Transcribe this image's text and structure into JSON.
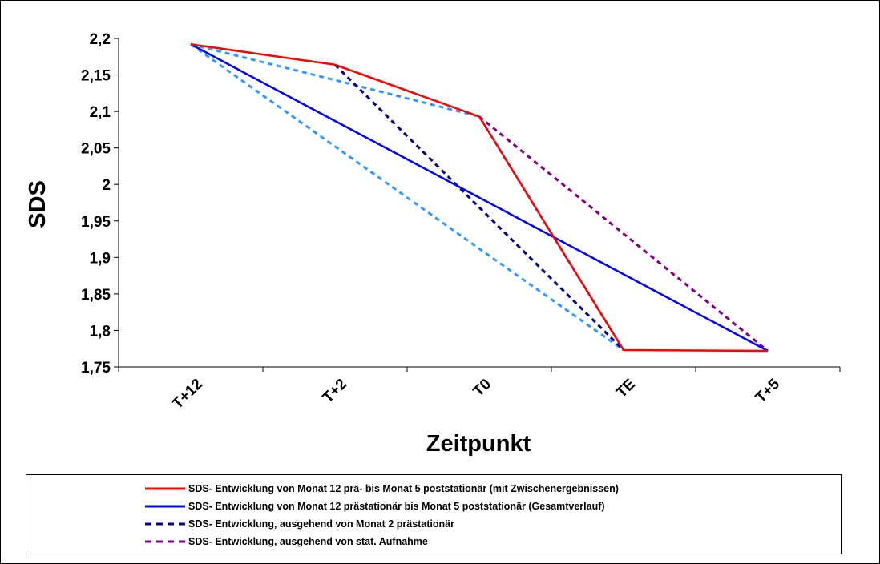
{
  "chart_data": {
    "type": "line",
    "xlabel": "Zeitpunkt",
    "ylabel": "SDS",
    "categories": [
      "T+12",
      "T+2",
      "T0",
      "TE",
      "T+5"
    ],
    "ylim": [
      1.75,
      2.2
    ],
    "yticks": [
      2.2,
      2.15,
      2.1,
      2.05,
      2,
      1.95,
      1.9,
      1.85,
      1.8,
      1.75
    ],
    "ytick_labels": [
      "2,2",
      "2,15",
      "2,1",
      "2,05",
      "2",
      "1,95",
      "1,9",
      "1,85",
      "1,8",
      "1,75"
    ],
    "grid": false,
    "legend_position": "bottom",
    "series": [
      {
        "name": "SDS- Entwicklung von Monat 12 prä- bis Monat 5 poststationär (mit Zwischenergebnissen)",
        "color": "#ff0000",
        "style": "solid",
        "points": [
          [
            0,
            2.192
          ],
          [
            1,
            2.164
          ],
          [
            2,
            2.093
          ],
          [
            3,
            1.773
          ],
          [
            4,
            1.772
          ]
        ]
      },
      {
        "name": "SDS- Entwicklung von Monat 12 prästationär bis Monat 5 poststationär (Gesamtverlauf)",
        "color": "#0000ff",
        "style": "solid",
        "points": [
          [
            0,
            2.192
          ],
          [
            4,
            1.772
          ]
        ]
      },
      {
        "name": "SDS- Entwicklung, ausgehend von Monat 2 prästationär",
        "color": "#000080",
        "style": "dashed",
        "points": [
          [
            1,
            2.164
          ],
          [
            3,
            1.773
          ]
        ]
      },
      {
        "name": "SDS- Entwicklung, ausgehend von stat. Aufnahme",
        "color": "#800080",
        "style": "dashed",
        "points": [
          [
            2,
            2.093
          ],
          [
            4,
            1.772
          ]
        ]
      },
      {
        "name": "",
        "color": "#3399ff",
        "style": "dashed",
        "points": [
          [
            0,
            2.192
          ],
          [
            1,
            2.143
          ],
          [
            2,
            2.093
          ],
          [
            3,
            1.773
          ]
        ]
      },
      {
        "name": "",
        "color": "#3399ff",
        "style": "dashed",
        "points": [
          [
            0,
            2.192
          ],
          [
            1,
            2.052
          ],
          [
            2,
            1.912
          ],
          [
            3,
            1.773
          ]
        ]
      }
    ]
  }
}
